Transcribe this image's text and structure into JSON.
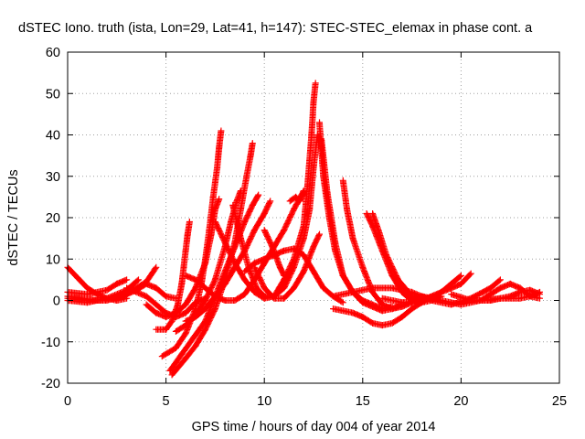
{
  "chart_data": {
    "type": "scatter",
    "title": "dSTEC Iono. truth (ista, Lon=29, Lat=41, h=147): STEC-STEC_elemax in phase cont. a",
    "xlabel": "GPS time / hours of day 004 of year 2014",
    "ylabel": "dSTEC  / TECUs",
    "xlim": [
      0,
      25
    ],
    "ylim": [
      -20,
      60
    ],
    "xticks": [
      "0",
      "5",
      "10",
      "15",
      "20",
      "25"
    ],
    "yticks": [
      "-20",
      "-10",
      "0",
      "10",
      "20",
      "30",
      "40",
      "50",
      "60"
    ],
    "xtick_values": [
      0,
      5,
      10,
      15,
      20,
      25
    ],
    "ytick_values": [
      -20,
      -10,
      0,
      10,
      20,
      30,
      40,
      50,
      60
    ],
    "grid": true,
    "marker": "+",
    "color": "#ff0000",
    "series": [
      {
        "values": [
          [
            0.0,
            8.0
          ],
          [
            0.5,
            5.5
          ],
          [
            1.0,
            3.0
          ],
          [
            1.5,
            1.5
          ],
          [
            2.0,
            0.5
          ],
          [
            2.5,
            0.0
          ],
          [
            3.0,
            0.5
          ]
        ]
      },
      {
        "values": [
          [
            0.0,
            2.0
          ],
          [
            1.0,
            1.5
          ],
          [
            2.0,
            2.5
          ],
          [
            2.5,
            4.0
          ],
          [
            3.0,
            5.0
          ]
        ]
      },
      {
        "values": [
          [
            0.0,
            0.5
          ],
          [
            1.0,
            0.0
          ],
          [
            2.0,
            0.0
          ],
          [
            3.0,
            1.5
          ],
          [
            4.0,
            4.5
          ],
          [
            4.5,
            8.0
          ]
        ]
      },
      {
        "values": [
          [
            0.0,
            1.0
          ],
          [
            1.5,
            0.0
          ],
          [
            2.5,
            0.5
          ],
          [
            3.5,
            2.5
          ],
          [
            4.0,
            4.0
          ],
          [
            4.5,
            3.0
          ],
          [
            5.0,
            1.0
          ],
          [
            5.5,
            0.5
          ]
        ]
      },
      {
        "values": [
          [
            0.0,
            0.0
          ],
          [
            1.0,
            -0.5
          ],
          [
            2.0,
            0.5
          ],
          [
            3.0,
            2.5
          ],
          [
            3.6,
            5.0
          ]
        ]
      },
      {
        "values": [
          [
            3.0,
            3.0
          ],
          [
            4.0,
            1.0
          ],
          [
            4.5,
            -1.0
          ],
          [
            5.0,
            -3.0
          ],
          [
            5.5,
            -4.0
          ],
          [
            6.0,
            -3.0
          ],
          [
            6.5,
            -0.5
          ],
          [
            7.0,
            0.5
          ]
        ]
      },
      {
        "values": [
          [
            4.5,
            -7.0
          ],
          [
            5.0,
            -7.0
          ],
          [
            5.3,
            -5.0
          ],
          [
            5.6,
            -1.0
          ],
          [
            5.8,
            4.0
          ],
          [
            5.9,
            8.0
          ],
          [
            6.0,
            12.0
          ],
          [
            6.1,
            16.0
          ],
          [
            6.2,
            19.0
          ]
        ]
      },
      {
        "values": [
          [
            4.0,
            -1.0
          ],
          [
            4.5,
            -3.0
          ],
          [
            5.0,
            -4.0
          ],
          [
            5.5,
            -3.0
          ],
          [
            6.0,
            -1.0
          ],
          [
            6.5,
            3.0
          ],
          [
            7.0,
            9.0
          ],
          [
            7.3,
            16.0
          ],
          [
            7.5,
            22.0
          ],
          [
            7.7,
            24.5
          ]
        ]
      },
      {
        "values": [
          [
            4.8,
            -13.5
          ],
          [
            5.5,
            -11.5
          ],
          [
            6.0,
            -8.0
          ],
          [
            6.5,
            -2.0
          ],
          [
            6.8,
            4.0
          ],
          [
            7.0,
            10.0
          ],
          [
            7.2,
            17.0
          ],
          [
            7.4,
            25.0
          ],
          [
            7.6,
            32.0
          ],
          [
            7.7,
            37.0
          ],
          [
            7.8,
            41.0
          ]
        ]
      },
      {
        "values": [
          [
            5.5,
            -7.5
          ],
          [
            6.0,
            -6.0
          ],
          [
            6.5,
            -3.5
          ],
          [
            7.0,
            0.0
          ],
          [
            7.5,
            5.0
          ],
          [
            8.0,
            13.0
          ],
          [
            8.3,
            19.0
          ],
          [
            8.6,
            24.0
          ],
          [
            8.8,
            26.5
          ]
        ]
      },
      {
        "values": [
          [
            5.3,
            -18.0
          ],
          [
            6.0,
            -14.0
          ],
          [
            6.5,
            -11.0
          ],
          [
            7.0,
            -7.0
          ],
          [
            7.5,
            -2.0
          ],
          [
            8.0,
            5.0
          ],
          [
            8.5,
            14.0
          ],
          [
            8.8,
            22.0
          ],
          [
            9.1,
            30.0
          ],
          [
            9.3,
            35.0
          ],
          [
            9.4,
            38.0
          ]
        ]
      },
      {
        "values": [
          [
            5.2,
            -17.0
          ],
          [
            5.8,
            -13.0
          ],
          [
            6.4,
            -9.0
          ],
          [
            7.0,
            -5.0
          ],
          [
            7.5,
            1.0
          ],
          [
            8.0,
            7.0
          ],
          [
            8.5,
            13.0
          ],
          [
            9.0,
            19.0
          ],
          [
            9.4,
            23.0
          ],
          [
            9.7,
            25.5
          ]
        ]
      },
      {
        "values": [
          [
            6.0,
            -5.0
          ],
          [
            6.5,
            -4.0
          ],
          [
            7.0,
            -2.0
          ],
          [
            7.5,
            1.0
          ],
          [
            8.0,
            4.0
          ],
          [
            8.5,
            8.0
          ],
          [
            9.0,
            12.0
          ],
          [
            9.5,
            17.0
          ],
          [
            10.0,
            21.0
          ],
          [
            10.3,
            24.0
          ]
        ]
      },
      {
        "values": [
          [
            6.0,
            6.0
          ],
          [
            6.5,
            5.0
          ],
          [
            7.0,
            3.0
          ],
          [
            7.5,
            1.0
          ],
          [
            8.0,
            0.0
          ],
          [
            8.5,
            0.0
          ],
          [
            9.0,
            1.5
          ],
          [
            9.5,
            5.0
          ],
          [
            10.0,
            9.0
          ],
          [
            10.5,
            13.0
          ],
          [
            11.0,
            17.0
          ],
          [
            11.5,
            22.0
          ],
          [
            12.0,
            26.5
          ]
        ]
      },
      {
        "values": [
          [
            7.5,
            19.0
          ],
          [
            8.0,
            14.0
          ],
          [
            8.5,
            9.0
          ],
          [
            9.0,
            5.0
          ],
          [
            9.5,
            2.0
          ],
          [
            10.0,
            0.5
          ],
          [
            10.5,
            1.0
          ],
          [
            11.0,
            3.0
          ],
          [
            11.5,
            8.0
          ],
          [
            12.0,
            15.0
          ],
          [
            12.3,
            22.0
          ],
          [
            12.5,
            32.0
          ],
          [
            12.7,
            40.0
          ]
        ]
      },
      {
        "values": [
          [
            8.4,
            23.0
          ],
          [
            8.8,
            15.0
          ],
          [
            9.2,
            8.0
          ],
          [
            9.6,
            3.0
          ],
          [
            10.0,
            1.0
          ],
          [
            10.5,
            1.0
          ],
          [
            11.0,
            5.0
          ],
          [
            11.5,
            10.0
          ],
          [
            12.0,
            18.0
          ],
          [
            12.2,
            28.0
          ],
          [
            12.4,
            40.0
          ],
          [
            12.5,
            48.0
          ],
          [
            12.6,
            52.5
          ]
        ]
      },
      {
        "values": [
          [
            9.5,
            8.0
          ],
          [
            10.0,
            3.0
          ],
          [
            10.5,
            0.5
          ],
          [
            11.0,
            0.5
          ],
          [
            11.5,
            3.0
          ],
          [
            12.0,
            7.0
          ],
          [
            12.5,
            13.0
          ],
          [
            12.8,
            16.0
          ]
        ]
      },
      {
        "values": [
          [
            10.0,
            17.0
          ],
          [
            10.4,
            13.0
          ],
          [
            10.8,
            8.0
          ],
          [
            11.0,
            6.0
          ]
        ]
      },
      {
        "values": [
          [
            11.3,
            24.0
          ],
          [
            11.6,
            25.0
          ],
          [
            11.8,
            24.0
          ],
          [
            12.0,
            26.0
          ]
        ]
      },
      {
        "values": [
          [
            9.0,
            7.0
          ],
          [
            9.5,
            9.0
          ],
          [
            10.0,
            10.0
          ],
          [
            10.5,
            11.0
          ],
          [
            11.0,
            12.0
          ],
          [
            11.5,
            12.5
          ],
          [
            12.0,
            11.0
          ],
          [
            12.5,
            7.0
          ],
          [
            13.0,
            3.0
          ],
          [
            13.5,
            1.0
          ],
          [
            14.0,
            -0.5
          ]
        ]
      },
      {
        "values": [
          [
            12.8,
            43.0
          ],
          [
            13.0,
            30.0
          ],
          [
            13.3,
            20.0
          ],
          [
            13.6,
            12.0
          ],
          [
            14.0,
            6.0
          ],
          [
            14.5,
            2.0
          ],
          [
            15.0,
            0.0
          ],
          [
            15.5,
            -1.0
          ],
          [
            16.0,
            -2.0
          ],
          [
            16.5,
            -1.5
          ]
        ]
      },
      {
        "values": [
          [
            12.9,
            39.0
          ],
          [
            13.2,
            26.0
          ],
          [
            13.6,
            14.0
          ],
          [
            14.0,
            6.0
          ],
          [
            14.5,
            2.0
          ],
          [
            15.0,
            -0.5
          ],
          [
            15.5,
            -1.5
          ],
          [
            16.0,
            -2.5
          ],
          [
            16.5,
            -2.0
          ],
          [
            17.0,
            -1.0
          ]
        ]
      },
      {
        "values": [
          [
            14.0,
            29.0
          ],
          [
            14.2,
            22.0
          ],
          [
            14.5,
            15.0
          ],
          [
            15.0,
            8.0
          ],
          [
            15.5,
            2.0
          ],
          [
            16.0,
            -1.0
          ],
          [
            16.5,
            -2.0
          ],
          [
            17.0,
            -1.5
          ],
          [
            17.5,
            -0.5
          ],
          [
            18.0,
            1.0
          ]
        ]
      },
      {
        "values": [
          [
            13.5,
            -2.0
          ],
          [
            14.5,
            -3.0
          ],
          [
            15.0,
            -4.0
          ],
          [
            15.5,
            -5.5
          ],
          [
            16.0,
            -6.0
          ],
          [
            16.5,
            -5.5
          ],
          [
            17.0,
            -4.0
          ],
          [
            17.5,
            -2.0
          ],
          [
            18.0,
            -0.5
          ],
          [
            18.5,
            1.0
          ]
        ]
      },
      {
        "values": [
          [
            15.2,
            21.0
          ],
          [
            15.5,
            18.0
          ],
          [
            16.0,
            12.0
          ],
          [
            16.5,
            6.0
          ],
          [
            17.0,
            2.0
          ],
          [
            17.5,
            0.0
          ],
          [
            18.0,
            -0.5
          ],
          [
            18.5,
            0.0
          ],
          [
            19.0,
            1.0
          ]
        ]
      },
      {
        "values": [
          [
            15.5,
            21.0
          ],
          [
            15.8,
            17.0
          ],
          [
            16.2,
            11.0
          ],
          [
            16.8,
            5.0
          ],
          [
            17.5,
            1.0
          ],
          [
            18.0,
            0.0
          ],
          [
            18.5,
            0.5
          ],
          [
            19.0,
            2.0
          ],
          [
            19.5,
            4.0
          ],
          [
            20.0,
            6.0
          ]
        ]
      },
      {
        "values": [
          [
            13.5,
            1.0
          ],
          [
            14.5,
            2.0
          ],
          [
            15.5,
            3.0
          ],
          [
            16.5,
            3.0
          ],
          [
            17.5,
            2.0
          ],
          [
            18.5,
            0.0
          ],
          [
            19.5,
            -1.0
          ],
          [
            20.5,
            0.5
          ],
          [
            21.5,
            3.0
          ],
          [
            22.0,
            5.0
          ]
        ]
      },
      {
        "values": [
          [
            16.0,
            0.5
          ],
          [
            17.0,
            -0.5
          ],
          [
            18.0,
            0.0
          ],
          [
            18.5,
            1.0
          ],
          [
            19.0,
            2.0
          ],
          [
            19.5,
            3.0
          ],
          [
            20.0,
            4.0
          ],
          [
            20.5,
            6.5
          ]
        ]
      },
      {
        "values": [
          [
            18.0,
            1.0
          ],
          [
            19.0,
            0.0
          ],
          [
            20.0,
            -1.0
          ],
          [
            21.0,
            0.0
          ],
          [
            21.5,
            1.5
          ],
          [
            22.0,
            3.0
          ],
          [
            22.5,
            4.0
          ],
          [
            23.0,
            3.0
          ],
          [
            23.5,
            1.0
          ],
          [
            24.0,
            0.5
          ]
        ]
      },
      {
        "values": [
          [
            19.5,
            1.5
          ],
          [
            20.5,
            0.0
          ],
          [
            21.5,
            0.0
          ],
          [
            22.5,
            1.0
          ],
          [
            23.0,
            2.0
          ],
          [
            23.5,
            2.5
          ],
          [
            24.0,
            1.5
          ]
        ]
      },
      {
        "values": [
          [
            21.0,
            0.0
          ],
          [
            22.0,
            0.5
          ],
          [
            23.0,
            0.5
          ],
          [
            23.5,
            1.0
          ],
          [
            24.0,
            2.0
          ]
        ]
      }
    ]
  }
}
